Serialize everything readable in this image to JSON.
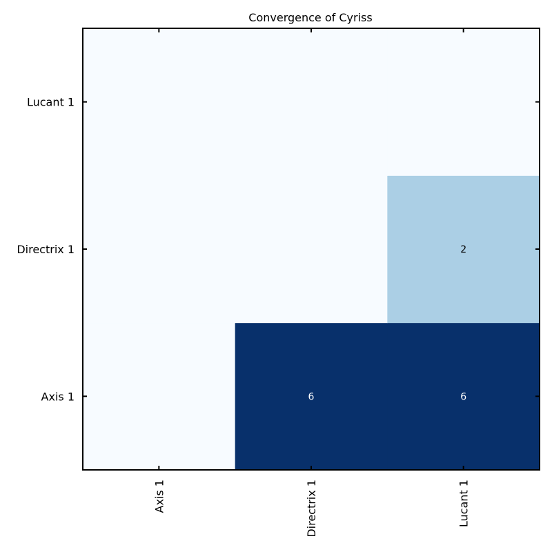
{
  "chart_data": {
    "type": "heatmap",
    "title": "Convergence of Cyriss",
    "x_categories": [
      "Axis 1",
      "Directrix 1",
      "Lucant 1"
    ],
    "y_categories": [
      "Axis 1",
      "Directrix 1",
      "Lucant 1"
    ],
    "values": [
      [
        0,
        6,
        6
      ],
      [
        0,
        0,
        2
      ],
      [
        0,
        0,
        0
      ]
    ],
    "show_zero_labels": false,
    "value_range": [
      0,
      6
    ],
    "colormap": {
      "low": "#f7fbff",
      "mid": "#abcfe5",
      "high": "#08306b"
    },
    "xlabel": "",
    "ylabel": "",
    "grid": false,
    "colorbar": false
  }
}
